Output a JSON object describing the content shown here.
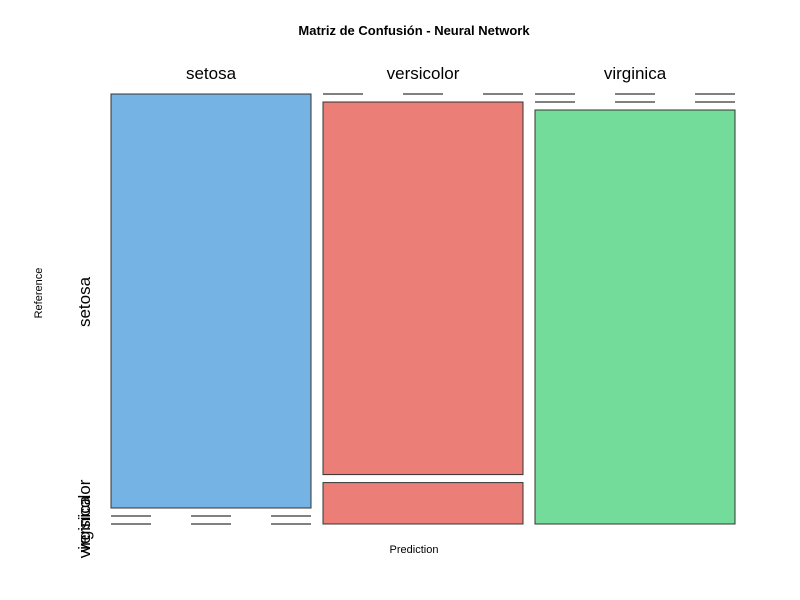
{
  "chart_data": {
    "type": "mosaic",
    "title": "Matriz de Confusión - Neural Network",
    "xlabel": "Prediction",
    "ylabel": "Reference",
    "columns": [
      "setosa",
      "versicolor",
      "virginica"
    ],
    "rows": [
      "setosa",
      "versicolor",
      "virginica"
    ],
    "matrix": [
      [
        10,
        0,
        0
      ],
      [
        0,
        9,
        0
      ],
      [
        0,
        1,
        10
      ]
    ],
    "colors": {
      "correct_setosa": "#74b3e3",
      "correct_virginica": "#74dc9b",
      "other": "#eb7f78",
      "stroke": "#333333"
    }
  }
}
